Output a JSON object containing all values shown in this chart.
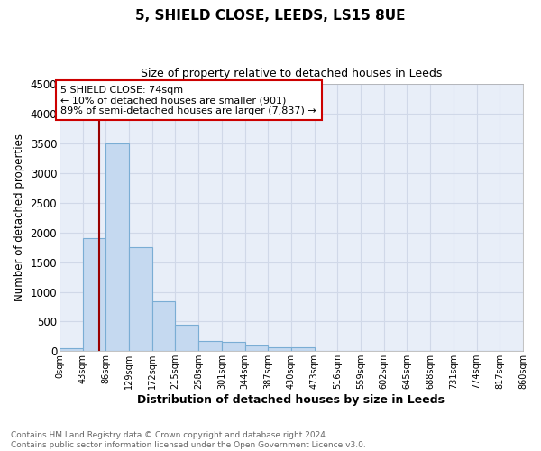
{
  "title1": "5, SHIELD CLOSE, LEEDS, LS15 8UE",
  "title2": "Size of property relative to detached houses in Leeds",
  "xlabel": "Distribution of detached houses by size in Leeds",
  "ylabel": "Number of detached properties",
  "bar_values": [
    50,
    1900,
    3500,
    1760,
    840,
    450,
    165,
    160,
    90,
    65,
    60,
    0,
    0,
    0,
    0,
    0,
    0,
    0,
    0,
    0
  ],
  "bar_labels": [
    "0sqm",
    "43sqm",
    "86sqm",
    "129sqm",
    "172sqm",
    "215sqm",
    "258sqm",
    "301sqm",
    "344sqm",
    "387sqm",
    "430sqm",
    "473sqm",
    "516sqm",
    "559sqm",
    "602sqm",
    "645sqm",
    "688sqm",
    "731sqm",
    "774sqm",
    "817sqm",
    "860sqm"
  ],
  "bar_color": "#c5d9f0",
  "bar_edge_color": "#7aadd4",
  "background_color": "#e8eef8",
  "grid_color": "#d0d8e8",
  "vline_color": "#990000",
  "annotation_text": "5 SHIELD CLOSE: 74sqm\n← 10% of detached houses are smaller (901)\n89% of semi-detached houses are larger (7,837) →",
  "annotation_box_color": "#ffffff",
  "annotation_box_edge": "#cc0000",
  "ylim": [
    0,
    4500
  ],
  "yticks": [
    0,
    500,
    1000,
    1500,
    2000,
    2500,
    3000,
    3500,
    4000,
    4500
  ],
  "footnote": "Contains HM Land Registry data © Crown copyright and database right 2024.\nContains public sector information licensed under the Open Government Licence v3.0.",
  "vline_sqm": 74,
  "bin_size": 43
}
